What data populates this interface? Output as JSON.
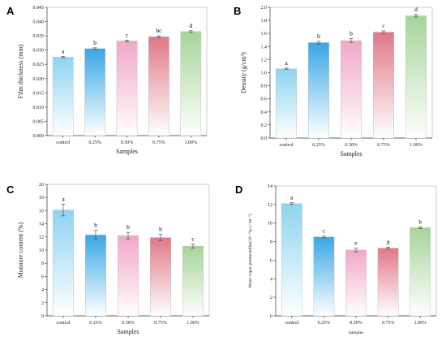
{
  "chart_data": [
    {
      "panel": "A",
      "type": "bar",
      "xlabel": "Samples",
      "ylabel": "Film thickness (mm)",
      "categories": [
        "control",
        "0.25%",
        "0.50%",
        "0.75%",
        "1.00%"
      ],
      "values": [
        0.0275,
        0.0305,
        0.0332,
        0.0347,
        0.0365
      ],
      "errors": [
        0.0003,
        0.0003,
        0.0003,
        0.0003,
        0.0003
      ],
      "significance": [
        "a",
        "b",
        "c",
        "bc",
        "d"
      ],
      "ylim": [
        0,
        0.045
      ],
      "yticks": [
        "0.000",
        "0.005",
        "0.010",
        "0.015",
        "0.020",
        "0.025",
        "0.030",
        "0.035",
        "0.040",
        "0.045"
      ],
      "grid": false
    },
    {
      "panel": "B",
      "type": "bar",
      "xlabel": "Samples",
      "ylabel": "Density (g/cm³)",
      "categories": [
        "control",
        "0.25%",
        "0.50%",
        "0.75%",
        "1.00%"
      ],
      "values": [
        1.06,
        1.46,
        1.49,
        1.62,
        1.87
      ],
      "errors": [
        0.01,
        0.02,
        0.03,
        0.02,
        0.02
      ],
      "significance": [
        "a",
        "b",
        "b",
        "c",
        "d"
      ],
      "ylim": [
        0,
        2.0
      ],
      "yticks": [
        "0.0",
        "0.2",
        "0.4",
        "0.6",
        "0.8",
        "1.0",
        "1.2",
        "1.4",
        "1.6",
        "1.8",
        "2.0"
      ],
      "grid": false
    },
    {
      "panel": "C",
      "type": "bar",
      "xlabel": "Samples",
      "ylabel": "Moisture content (%)",
      "categories": [
        "control",
        "0.25%",
        "0.50%",
        "0.75%",
        "1.00%"
      ],
      "values": [
        16.1,
        12.3,
        12.2,
        11.9,
        10.6
      ],
      "errors": [
        0.9,
        0.7,
        0.5,
        0.5,
        0.3
      ],
      "significance": [
        "a",
        "b",
        "b",
        "b",
        "c"
      ],
      "ylim": [
        0,
        20
      ],
      "yticks": [
        "0",
        "2",
        "4",
        "6",
        "8",
        "10",
        "12",
        "14",
        "16",
        "18",
        "20"
      ],
      "grid": false
    },
    {
      "panel": "D",
      "type": "bar",
      "xlabel": "Samples",
      "ylabel": "Water vapor permeability(10⁻¹²g·s⁻¹m⁻¹)",
      "categories": [
        "control",
        "0.25%",
        "0.50%",
        "0.75%",
        "1.00%"
      ],
      "values": [
        12.1,
        8.5,
        7.1,
        7.3,
        9.5
      ],
      "errors": [
        0.1,
        0.1,
        0.2,
        0.1,
        0.1
      ],
      "significance": [
        "a",
        "c",
        "e",
        "d",
        "b"
      ],
      "ylim": [
        0,
        14
      ],
      "yticks": [
        "0",
        "2",
        "4",
        "6",
        "8",
        "10",
        "12",
        "14"
      ],
      "grid": false
    }
  ],
  "colors": {
    "bar_tops": [
      "#8fd3f0",
      "#3aa6e6",
      "#f0a8c8",
      "#e07888",
      "#a6d49a"
    ],
    "bar_bottom": "#ffffff"
  }
}
